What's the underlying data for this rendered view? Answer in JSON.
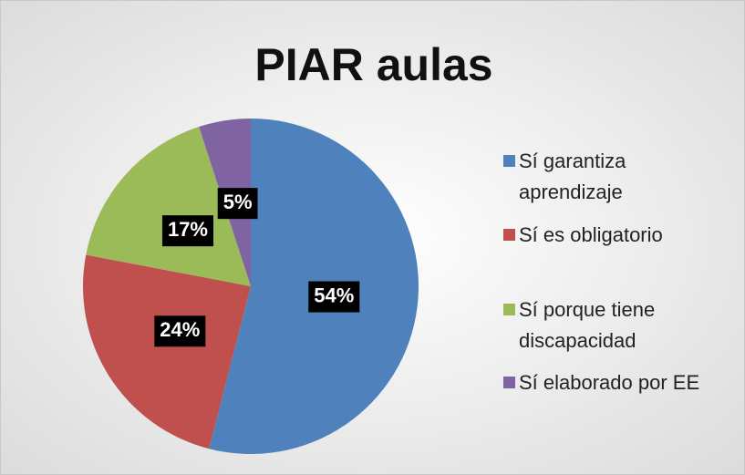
{
  "chart_data": {
    "type": "pie",
    "title": "PIAR aulas",
    "categories": [
      "Sí garantiza aprendizaje",
      "Sí es obligatorio",
      "Sí porque tiene discapacidad",
      "Sí elaborado por EE"
    ],
    "values": [
      54,
      24,
      17,
      5
    ],
    "value_labels": [
      "54%",
      "24%",
      "17%",
      "5%"
    ],
    "colors": [
      "#4f81bd",
      "#c0504d",
      "#9bbb59",
      "#8064a2"
    ],
    "legend": "right"
  }
}
